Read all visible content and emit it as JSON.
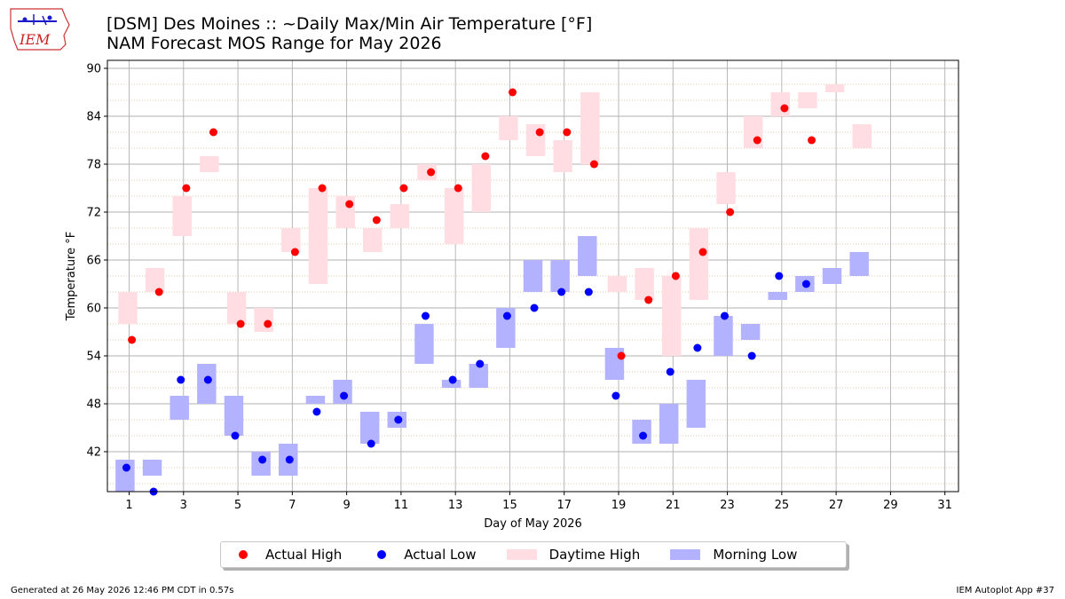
{
  "header": {
    "logo_text": "IEM",
    "title_line1": "[DSM] Des Moines :: ~Daily Max/Min Air Temperature [°F]",
    "title_line2": "NAM Forecast MOS Range for May 2026"
  },
  "legend": {
    "actual_high": "Actual High",
    "actual_low": "Actual Low",
    "daytime_high": "Daytime High",
    "morning_low": "Morning Low"
  },
  "footer": {
    "generated": "Generated at 26 May 2026 12:46 PM CDT in 0.57s",
    "app": "IEM Autoplot App #37"
  },
  "colors": {
    "actual_high": "#ff0000",
    "actual_low": "#0000ff",
    "daytime_high": "#ffdde2",
    "morning_low": "#b2b2ff",
    "grid": "#b0b0b0",
    "minor_grid": "#d9b98c"
  },
  "chart_data": {
    "type": "scatter+range",
    "xlabel": "Day of May 2026",
    "ylabel": "Temperature °F",
    "xlim": [
      0.2,
      31.5
    ],
    "ylim": [
      37,
      91
    ],
    "xticks": [
      1,
      3,
      5,
      7,
      9,
      11,
      13,
      15,
      17,
      19,
      21,
      23,
      25,
      27,
      29,
      31
    ],
    "yticks": [
      42,
      48,
      54,
      60,
      66,
      72,
      78,
      84,
      90
    ],
    "grid": true,
    "legend_position": "bottom-center",
    "daytime_high_range": [
      {
        "day": 1,
        "min": 58,
        "max": 62
      },
      {
        "day": 2,
        "min": 62,
        "max": 65
      },
      {
        "day": 3,
        "min": 69,
        "max": 74
      },
      {
        "day": 4,
        "min": 77,
        "max": 79
      },
      {
        "day": 5,
        "min": 58,
        "max": 62
      },
      {
        "day": 6,
        "min": 57,
        "max": 60
      },
      {
        "day": 7,
        "min": 67,
        "max": 70
      },
      {
        "day": 8,
        "min": 63,
        "max": 75
      },
      {
        "day": 9,
        "min": 70,
        "max": 74
      },
      {
        "day": 10,
        "min": 67,
        "max": 70
      },
      {
        "day": 11,
        "min": 70,
        "max": 73
      },
      {
        "day": 12,
        "min": 76,
        "max": 78
      },
      {
        "day": 13,
        "min": 68,
        "max": 75
      },
      {
        "day": 14,
        "min": 72,
        "max": 78
      },
      {
        "day": 15,
        "min": 81,
        "max": 84
      },
      {
        "day": 16,
        "min": 79,
        "max": 83
      },
      {
        "day": 17,
        "min": 77,
        "max": 81
      },
      {
        "day": 18,
        "min": 78,
        "max": 87
      },
      {
        "day": 19,
        "min": 62,
        "max": 64
      },
      {
        "day": 20,
        "min": 61,
        "max": 65
      },
      {
        "day": 21,
        "min": 54,
        "max": 64
      },
      {
        "day": 22,
        "min": 61,
        "max": 70
      },
      {
        "day": 23,
        "min": 73,
        "max": 77
      },
      {
        "day": 24,
        "min": 80,
        "max": 84
      },
      {
        "day": 25,
        "min": 84,
        "max": 87
      },
      {
        "day": 26,
        "min": 85,
        "max": 87
      },
      {
        "day": 27,
        "min": 87,
        "max": 88
      },
      {
        "day": 28,
        "min": 80,
        "max": 83
      }
    ],
    "morning_low_range": [
      {
        "day": 1,
        "min": 37,
        "max": 41
      },
      {
        "day": 2,
        "min": 39,
        "max": 41
      },
      {
        "day": 3,
        "min": 46,
        "max": 49
      },
      {
        "day": 4,
        "min": 48,
        "max": 53
      },
      {
        "day": 5,
        "min": 44,
        "max": 49
      },
      {
        "day": 6,
        "min": 39,
        "max": 42
      },
      {
        "day": 7,
        "min": 39,
        "max": 43
      },
      {
        "day": 8,
        "min": 48,
        "max": 49
      },
      {
        "day": 9,
        "min": 48,
        "max": 51
      },
      {
        "day": 10,
        "min": 43,
        "max": 47
      },
      {
        "day": 11,
        "min": 45,
        "max": 47
      },
      {
        "day": 12,
        "min": 53,
        "max": 58
      },
      {
        "day": 13,
        "min": 50,
        "max": 51
      },
      {
        "day": 14,
        "min": 50,
        "max": 53
      },
      {
        "day": 15,
        "min": 55,
        "max": 60
      },
      {
        "day": 16,
        "min": 62,
        "max": 66
      },
      {
        "day": 17,
        "min": 62,
        "max": 66
      },
      {
        "day": 18,
        "min": 64,
        "max": 69
      },
      {
        "day": 19,
        "min": 51,
        "max": 55
      },
      {
        "day": 20,
        "min": 43,
        "max": 46
      },
      {
        "day": 21,
        "min": 43,
        "max": 48
      },
      {
        "day": 22,
        "min": 45,
        "max": 51
      },
      {
        "day": 23,
        "min": 54,
        "max": 59
      },
      {
        "day": 24,
        "min": 56,
        "max": 58
      },
      {
        "day": 25,
        "min": 61,
        "max": 62
      },
      {
        "day": 26,
        "min": 62,
        "max": 64
      },
      {
        "day": 27,
        "min": 63,
        "max": 65
      },
      {
        "day": 28,
        "min": 64,
        "max": 67
      }
    ],
    "actual_high": [
      {
        "day": 1,
        "value": 56
      },
      {
        "day": 2,
        "value": 62
      },
      {
        "day": 3,
        "value": 75
      },
      {
        "day": 4,
        "value": 82
      },
      {
        "day": 5,
        "value": 58
      },
      {
        "day": 6,
        "value": 58
      },
      {
        "day": 7,
        "value": 67
      },
      {
        "day": 8,
        "value": 75
      },
      {
        "day": 9,
        "value": 73
      },
      {
        "day": 10,
        "value": 71
      },
      {
        "day": 11,
        "value": 75
      },
      {
        "day": 12,
        "value": 77
      },
      {
        "day": 13,
        "value": 75
      },
      {
        "day": 14,
        "value": 79
      },
      {
        "day": 15,
        "value": 87
      },
      {
        "day": 16,
        "value": 82
      },
      {
        "day": 17,
        "value": 82
      },
      {
        "day": 18,
        "value": 78
      },
      {
        "day": 19,
        "value": 54
      },
      {
        "day": 20,
        "value": 61
      },
      {
        "day": 21,
        "value": 64
      },
      {
        "day": 22,
        "value": 67
      },
      {
        "day": 23,
        "value": 72
      },
      {
        "day": 24,
        "value": 81
      },
      {
        "day": 25,
        "value": 85
      },
      {
        "day": 26,
        "value": 81
      }
    ],
    "actual_low": [
      {
        "day": 1,
        "value": 40
      },
      {
        "day": 2,
        "value": 37
      },
      {
        "day": 3,
        "value": 51
      },
      {
        "day": 4,
        "value": 51
      },
      {
        "day": 5,
        "value": 44
      },
      {
        "day": 6,
        "value": 41
      },
      {
        "day": 7,
        "value": 41
      },
      {
        "day": 8,
        "value": 47
      },
      {
        "day": 9,
        "value": 49
      },
      {
        "day": 10,
        "value": 43
      },
      {
        "day": 11,
        "value": 46
      },
      {
        "day": 12,
        "value": 59
      },
      {
        "day": 13,
        "value": 51
      },
      {
        "day": 14,
        "value": 53
      },
      {
        "day": 15,
        "value": 59
      },
      {
        "day": 16,
        "value": 60
      },
      {
        "day": 17,
        "value": 62
      },
      {
        "day": 18,
        "value": 62
      },
      {
        "day": 19,
        "value": 49
      },
      {
        "day": 20,
        "value": 44
      },
      {
        "day": 21,
        "value": 52
      },
      {
        "day": 22,
        "value": 55
      },
      {
        "day": 23,
        "value": 59
      },
      {
        "day": 24,
        "value": 54
      },
      {
        "day": 25,
        "value": 64
      },
      {
        "day": 26,
        "value": 63
      }
    ]
  }
}
